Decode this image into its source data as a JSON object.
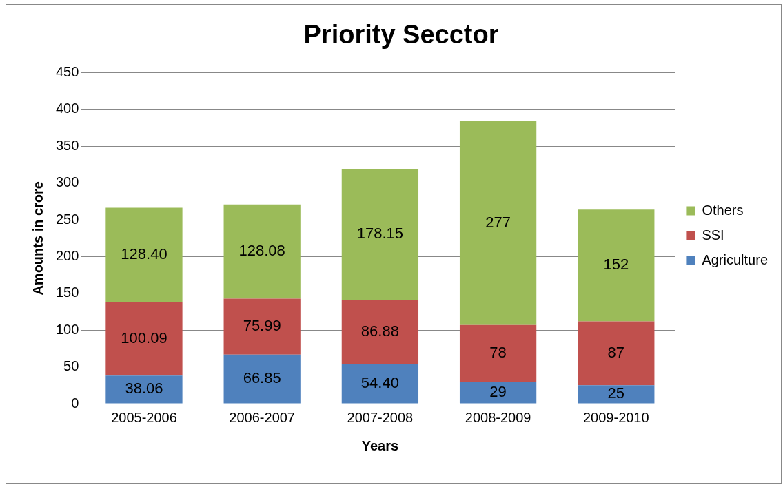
{
  "chart_data": {
    "type": "bar",
    "title": "Priority Secctor",
    "xlabel": "Years",
    "ylabel": "Amounts in crore",
    "categories": [
      "2005-2006",
      "2006-2007",
      "2007-2008",
      "2008-2009",
      "2009-2010"
    ],
    "series": [
      {
        "name": "Agriculture",
        "color": "#4f81bd",
        "values": [
          38.06,
          66.85,
          54.4,
          29,
          25
        ],
        "value_labels": [
          "38.06",
          "66.85",
          "54.40",
          "29",
          "25"
        ]
      },
      {
        "name": "SSI",
        "color": "#c0504d",
        "values": [
          100.09,
          75.99,
          86.88,
          78,
          87
        ],
        "value_labels": [
          "100.09",
          "75.99",
          "86.88",
          "78",
          "87"
        ]
      },
      {
        "name": "Others",
        "color": "#9bbb59",
        "values": [
          128.4,
          128.08,
          178.15,
          277,
          152
        ],
        "value_labels": [
          "128.40",
          "128.08",
          "178.15",
          "277",
          "152"
        ]
      }
    ],
    "stacked": true,
    "ylim": [
      0,
      450
    ],
    "yticks": [
      0,
      50,
      100,
      150,
      200,
      250,
      300,
      350,
      400,
      450
    ],
    "grid": "y",
    "legend": "right"
  }
}
